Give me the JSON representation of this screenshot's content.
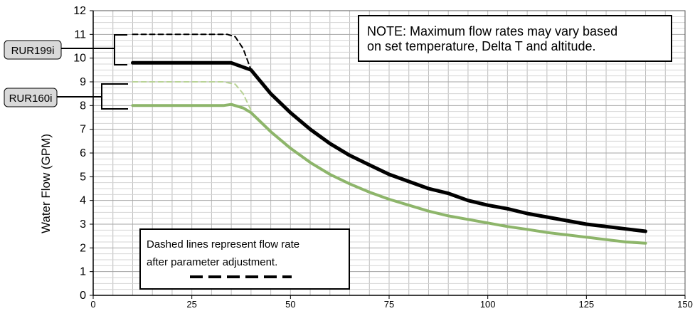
{
  "chart_data": {
    "type": "line",
    "ylabel": "Water Flow (GPM)",
    "xlabel": "",
    "xlim": [
      0,
      150
    ],
    "ylim": [
      0,
      12
    ],
    "x_ticks": [
      0,
      25,
      50,
      75,
      100,
      125,
      150
    ],
    "y_ticks": [
      0,
      1,
      2,
      3,
      4,
      5,
      6,
      7,
      8,
      9,
      10,
      11,
      12
    ],
    "grid": true,
    "series": [
      {
        "name": "RUR199i",
        "style": "solid",
        "color": "#000000",
        "x": [
          10,
          35,
          40,
          45,
          50,
          55,
          60,
          65,
          70,
          75,
          80,
          85,
          90,
          95,
          100,
          105,
          110,
          115,
          120,
          125,
          130,
          135,
          140
        ],
        "y": [
          9.8,
          9.8,
          9.5,
          8.5,
          7.7,
          7.0,
          6.4,
          5.9,
          5.5,
          5.1,
          4.8,
          4.5,
          4.3,
          4.0,
          3.8,
          3.65,
          3.45,
          3.3,
          3.15,
          3.0,
          2.9,
          2.8,
          2.7
        ]
      },
      {
        "name": "RUR199i",
        "style": "dashed",
        "color": "#000000",
        "x": [
          10,
          34,
          36,
          38,
          40
        ],
        "y": [
          11.0,
          11.0,
          10.9,
          10.4,
          9.5
        ]
      },
      {
        "name": "RUR160i",
        "style": "solid",
        "color": "#8db56a",
        "x": [
          10,
          33,
          35,
          38,
          40,
          45,
          50,
          55,
          60,
          65,
          70,
          75,
          80,
          85,
          90,
          95,
          100,
          105,
          110,
          115,
          120,
          125,
          130,
          135,
          140
        ],
        "y": [
          8.0,
          8.0,
          8.05,
          7.9,
          7.7,
          6.9,
          6.2,
          5.6,
          5.1,
          4.7,
          4.35,
          4.05,
          3.8,
          3.55,
          3.35,
          3.2,
          3.05,
          2.9,
          2.78,
          2.65,
          2.55,
          2.45,
          2.35,
          2.25,
          2.2
        ]
      },
      {
        "name": "RUR160i",
        "style": "dashed",
        "color": "#b9d397",
        "x": [
          10,
          33,
          36,
          38,
          40
        ],
        "y": [
          9.0,
          9.0,
          8.9,
          8.5,
          7.8
        ]
      }
    ]
  },
  "note": {
    "line1": "NOTE: Maximum flow rates may vary based",
    "line2": "on set temperature, Delta T and altitude."
  },
  "legend": {
    "line1": "Dashed lines represent flow rate",
    "line2": "after parameter adjustment."
  },
  "model_tags": {
    "top": "RUR199i",
    "bottom": "RUR160i"
  }
}
